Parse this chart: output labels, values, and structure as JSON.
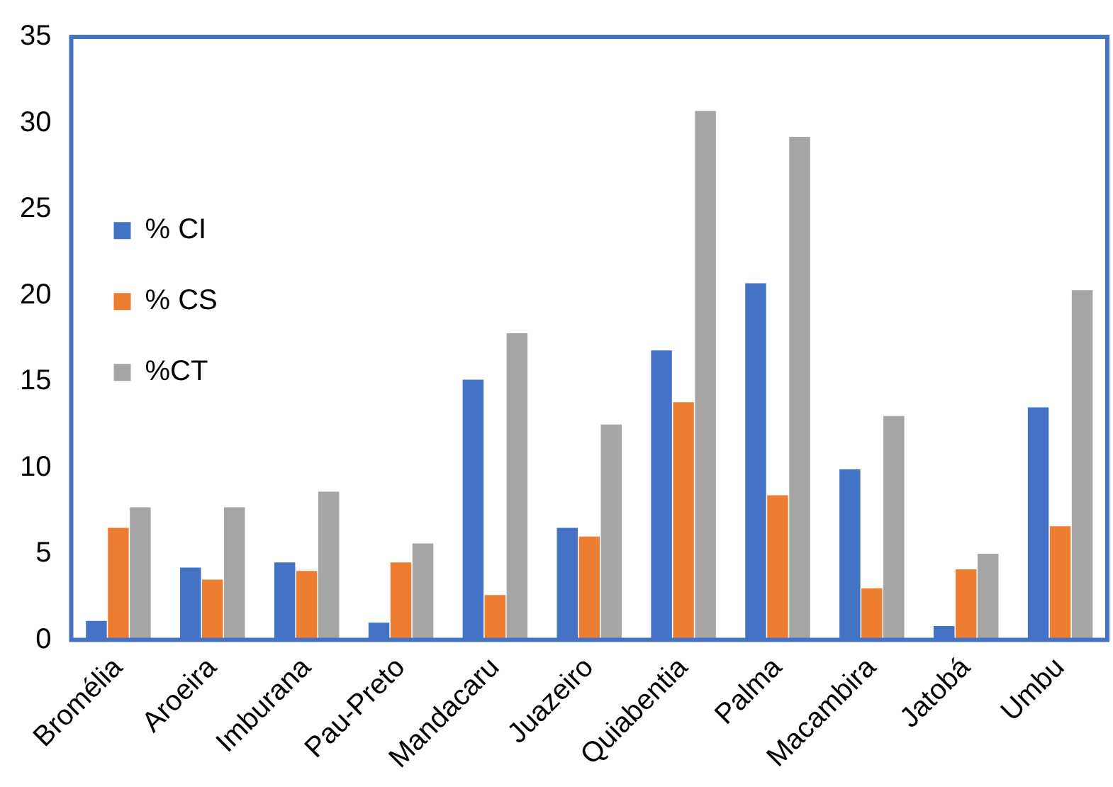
{
  "chart_data": {
    "type": "bar",
    "categories": [
      "Bromélia",
      "Aroeira",
      "Imburana",
      "Pau-Preto",
      "Mandacaru",
      "Juazeiro",
      "Quiabentia",
      "Palma",
      "Macambira",
      "Jatobá",
      "Umbu"
    ],
    "series": [
      {
        "name": "% CI",
        "color": "#4472c4",
        "values": [
          1.1,
          4.2,
          4.5,
          1.0,
          15.1,
          6.5,
          16.8,
          20.7,
          9.9,
          0.8,
          13.5
        ]
      },
      {
        "name": "% CS",
        "color": "#ed7d31",
        "values": [
          6.5,
          3.5,
          4.0,
          4.5,
          2.6,
          6.0,
          13.8,
          8.4,
          3.0,
          4.1,
          6.6
        ]
      },
      {
        "name": "%CT",
        "color": "#a5a5a5",
        "values": [
          7.7,
          7.7,
          8.6,
          5.6,
          17.8,
          12.5,
          30.7,
          29.2,
          13.0,
          5.0,
          20.3
        ]
      }
    ],
    "ylim": [
      0,
      35
    ],
    "yticks": [
      0,
      5,
      10,
      15,
      20,
      25,
      30,
      35
    ],
    "grid": false,
    "legend": "top"
  }
}
